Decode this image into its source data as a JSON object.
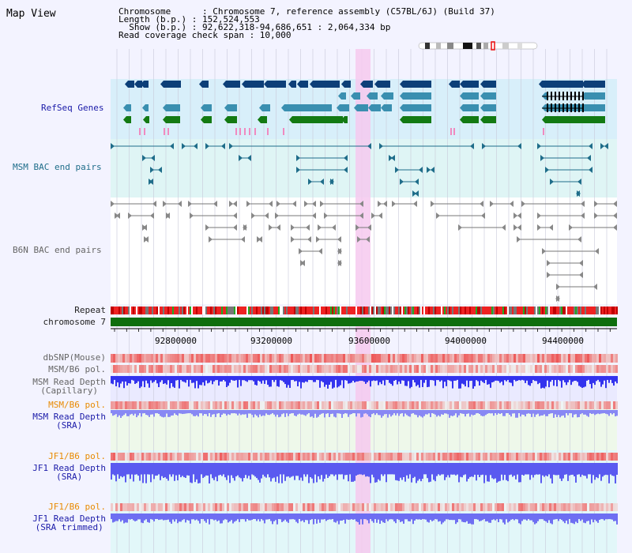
{
  "header": {
    "title": "Map View",
    "chromosome_label": "Chromosome      : Chromosome 7, reference assembly (C57BL/6J) (Build 37)",
    "length_label": "Length (b.p.) : 152,524,553",
    "show_label": "  Show (b.p.) : 92,622,318-94,686,651 : 2,064,334 bp",
    "coverage_label": "Read coverage check span : 10,000"
  },
  "tracks": {
    "refseq": "RefSeq Genes",
    "msm_bac": "MSM BAC end pairs",
    "b6n_bac": "B6N BAC end pairs",
    "repeat": "Repeat",
    "chromosome": "chromosome 7",
    "dbsnp": "dbSNP(Mouse)",
    "msm_b6_pol_1": "MSM/B6 pol.",
    "msm_depth_cap_1": "MSM Read Depth",
    "msm_depth_cap_2": "(Capillary)",
    "msm_b6_pol_2": "MSM/B6 pol.",
    "msm_depth_sra_1": "MSM Read Depth",
    "msm_depth_sra_2": "(SRA)",
    "jf1_b6_pol_1": "JF1/B6 pol.",
    "jf1_depth_sra_1": "JF1 Read Depth",
    "jf1_depth_sra_2": "(SRA)",
    "jf1_b6_pol_2": "JF1/B6 pol.",
    "jf1_depth_trim_1": "JF1 Read Depth",
    "jf1_depth_trim_2": "(SRA trimmed)"
  },
  "axis": {
    "ticks": [
      "92800000",
      "93200000",
      "93600000",
      "94000000",
      "94400000"
    ]
  },
  "colors": {
    "refseq_bg": "#d8effa",
    "msm_bac_bg": "#dff5f5",
    "gene_navy": "#0d3f78",
    "gene_green": "#137a13",
    "gene_teal": "#3a8fb0",
    "chromosome_bar": "#0e6e0e",
    "highlight": "#f6c9ee",
    "depth_blue": "#4040ee",
    "pol_red": "#ee2a2a"
  }
}
